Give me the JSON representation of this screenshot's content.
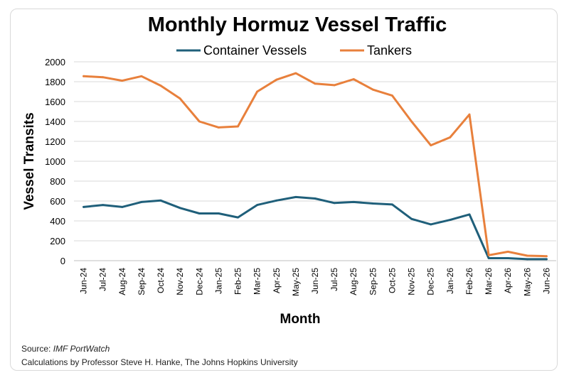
{
  "chart_data": {
    "type": "line",
    "title": "Monthly Hormuz Vessel Traffic",
    "xlabel": "Month",
    "ylabel": "Vessel Transits",
    "ylim": [
      0,
      2000
    ],
    "yticks": [
      0,
      200,
      400,
      600,
      800,
      1000,
      1200,
      1400,
      1600,
      1800,
      2000
    ],
    "grid": "horizontal",
    "legend_placement": "top",
    "categories": [
      "Jun-24",
      "Jul-24",
      "Aug-24",
      "Sep-24",
      "Oct-24",
      "Nov-24",
      "Dec-24",
      "Jan-25",
      "Feb-25",
      "Mar-25",
      "Apr-25",
      "May-25",
      "Jun-25",
      "Jul-25",
      "Aug-25",
      "Sep-25",
      "Oct-25",
      "Nov-25",
      "Dec-25",
      "Jan-26",
      "Feb-26",
      "Mar-26",
      "Apr-26",
      "May-26",
      "Jun-26"
    ],
    "series": [
      {
        "name": "Container Vessels",
        "color": "#1f5f7a",
        "values": [
          540,
          560,
          540,
          590,
          605,
          530,
          475,
          475,
          435,
          560,
          605,
          640,
          625,
          580,
          590,
          575,
          565,
          420,
          365,
          410,
          465,
          25,
          25,
          15,
          15
        ]
      },
      {
        "name": "Tankers",
        "color": "#e8803c",
        "values": [
          1855,
          1845,
          1810,
          1855,
          1760,
          1630,
          1400,
          1340,
          1350,
          1700,
          1820,
          1885,
          1780,
          1765,
          1825,
          1720,
          1660,
          1400,
          1160,
          1240,
          1470,
          55,
          90,
          50,
          45
        ]
      }
    ]
  },
  "footer": {
    "source_label": "Source: ",
    "source_name": "IMF PortWatch",
    "credit": "Calculations by Professor Steve H. Hanke, The Johns Hopkins University"
  }
}
